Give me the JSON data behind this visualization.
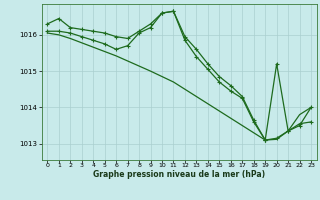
{
  "background_color": "#c8eaea",
  "grid_color": "#aacfcf",
  "line_color": "#1e6b1e",
  "marker_color": "#1e6b1e",
  "xlabel": "Graphe pression niveau de la mer (hPa)",
  "ylim": [
    1012.55,
    1016.85
  ],
  "yticks": [
    1013,
    1014,
    1015,
    1016
  ],
  "xticks": [
    0,
    1,
    2,
    3,
    4,
    5,
    6,
    7,
    8,
    9,
    10,
    11,
    12,
    13,
    14,
    15,
    16,
    17,
    18,
    19,
    20,
    21,
    22,
    23
  ],
  "series": [
    {
      "x": [
        0,
        1,
        2,
        3,
        4,
        5,
        6,
        7,
        8,
        9,
        10,
        11,
        12,
        13,
        14,
        15,
        16,
        17,
        18,
        19
      ],
      "y": [
        1016.3,
        1016.45,
        1016.2,
        1016.15,
        1016.1,
        1016.05,
        1015.95,
        1015.9,
        1016.1,
        1016.3,
        1016.6,
        1016.65,
        1015.95,
        1015.6,
        1015.2,
        1014.85,
        1014.6,
        1014.3,
        1013.65,
        1013.1
      ],
      "with_markers": true,
      "linewidth": 0.9
    },
    {
      "x": [
        0,
        1,
        2,
        3,
        4,
        5,
        6,
        7,
        8,
        9,
        10,
        11,
        12,
        13,
        14,
        15,
        16,
        17,
        18,
        19,
        20,
        21,
        22,
        23
      ],
      "y": [
        1016.05,
        1016.0,
        1015.9,
        1015.78,
        1015.66,
        1015.54,
        1015.42,
        1015.28,
        1015.14,
        1015.0,
        1014.85,
        1014.7,
        1014.5,
        1014.3,
        1014.1,
        1013.9,
        1013.7,
        1013.5,
        1013.3,
        1013.1,
        1013.12,
        1013.35,
        1013.8,
        1014.0
      ],
      "with_markers": false,
      "linewidth": 0.9
    },
    {
      "x": [
        0,
        1,
        2,
        3,
        4,
        5,
        6,
        7,
        8,
        9,
        10,
        11,
        12,
        13,
        14,
        15,
        16,
        17,
        18,
        19,
        20,
        21,
        22,
        23
      ],
      "y": [
        1016.1,
        1016.1,
        1016.05,
        1015.95,
        1015.85,
        1015.75,
        1015.6,
        1015.7,
        1016.05,
        1016.2,
        1016.6,
        1016.65,
        1015.85,
        1015.4,
        1015.05,
        1014.7,
        1014.45,
        1014.25,
        1013.6,
        1013.1,
        1015.2,
        1013.35,
        1013.5,
        1014.0
      ],
      "with_markers": true,
      "linewidth": 0.9
    },
    {
      "x": [
        19,
        20,
        21,
        22,
        23
      ],
      "y": [
        1013.1,
        1013.15,
        1013.35,
        1013.55,
        1013.6
      ],
      "with_markers": true,
      "linewidth": 0.9
    }
  ]
}
